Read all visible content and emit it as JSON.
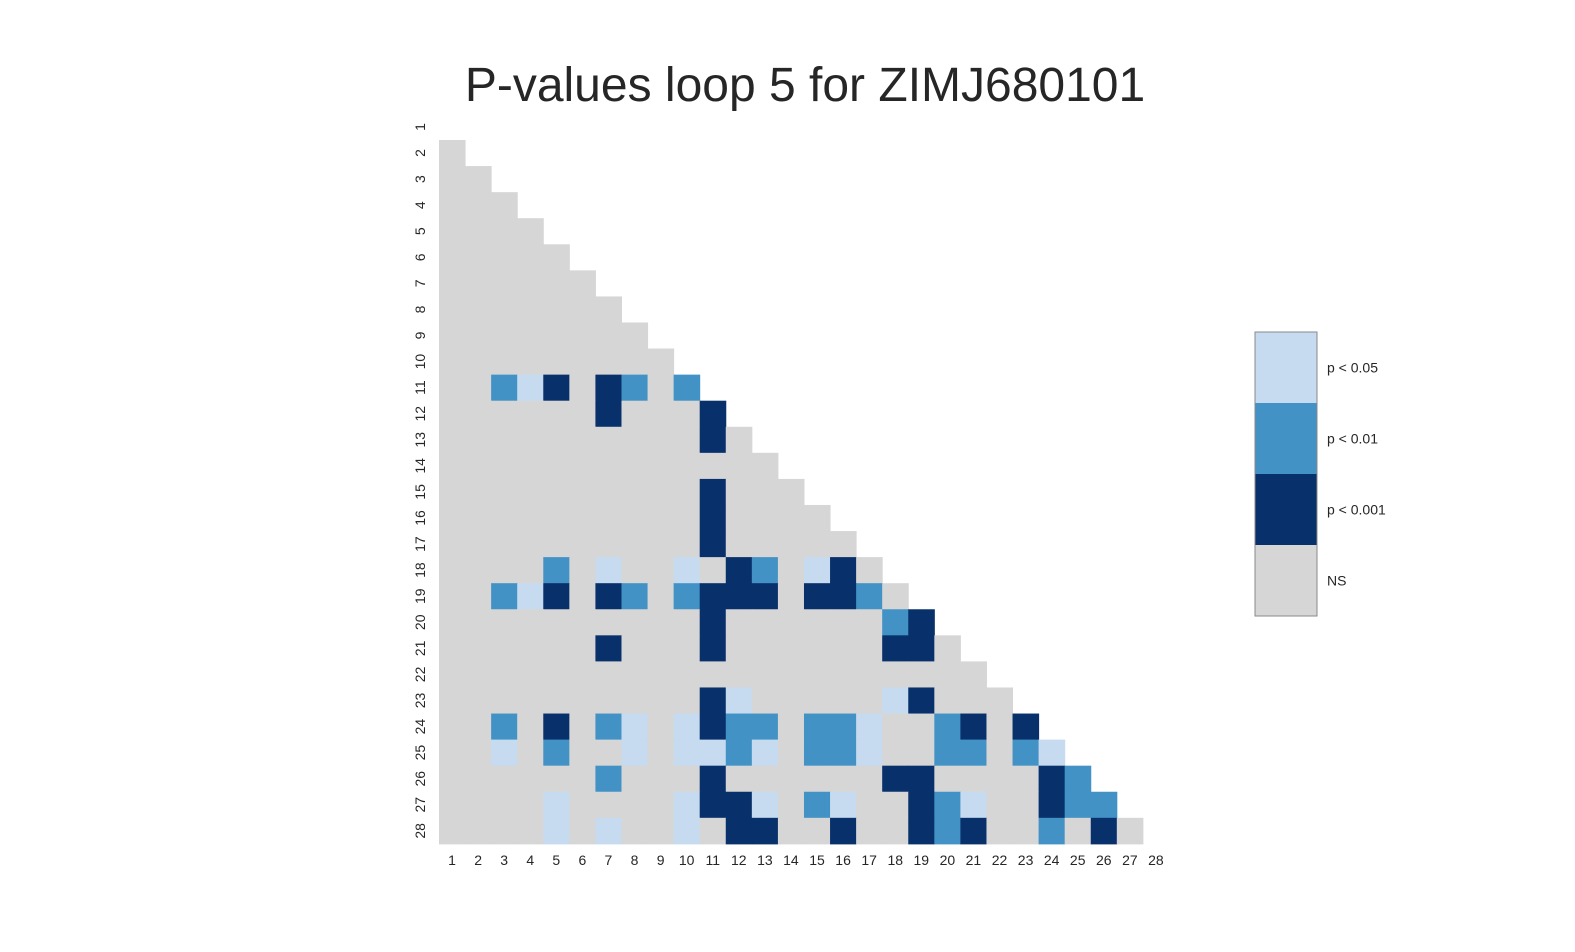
{
  "chart_data": {
    "type": "heatmap",
    "title": "P-values loop 5 for ZIMJ680101",
    "x_ticks": [
      "1",
      "2",
      "3",
      "4",
      "5",
      "6",
      "7",
      "8",
      "9",
      "10",
      "11",
      "12",
      "13",
      "14",
      "15",
      "16",
      "17",
      "18",
      "19",
      "20",
      "21",
      "22",
      "23",
      "24",
      "25",
      "26",
      "27",
      "28"
    ],
    "y_ticks": [
      "1",
      "2",
      "3",
      "4",
      "5",
      "6",
      "7",
      "8",
      "9",
      "10",
      "11",
      "12",
      "13",
      "14",
      "15",
      "16",
      "17",
      "18",
      "19",
      "20",
      "21",
      "22",
      "23",
      "24",
      "25",
      "26",
      "27",
      "28"
    ],
    "matrix_shape": "lower-triangular",
    "levels": [
      {
        "code": 0,
        "label": "NS",
        "color": "#d6d6d6"
      },
      {
        "code": 1,
        "label": "p < 0.05",
        "color": "#c6dbef"
      },
      {
        "code": 2,
        "label": "p < 0.01",
        "color": "#4292c6"
      },
      {
        "code": 3,
        "label": "p < 0.001",
        "color": "#08306b"
      }
    ],
    "significant_cells": [
      {
        "row": 11,
        "col": 3,
        "level": 2
      },
      {
        "row": 11,
        "col": 4,
        "level": 1
      },
      {
        "row": 11,
        "col": 5,
        "level": 3
      },
      {
        "row": 11,
        "col": 7,
        "level": 3
      },
      {
        "row": 11,
        "col": 8,
        "level": 2
      },
      {
        "row": 11,
        "col": 10,
        "level": 2
      },
      {
        "row": 12,
        "col": 7,
        "level": 3
      },
      {
        "row": 12,
        "col": 11,
        "level": 3
      },
      {
        "row": 13,
        "col": 11,
        "level": 3
      },
      {
        "row": 15,
        "col": 11,
        "level": 3
      },
      {
        "row": 16,
        "col": 11,
        "level": 3
      },
      {
        "row": 17,
        "col": 11,
        "level": 3
      },
      {
        "row": 18,
        "col": 5,
        "level": 2
      },
      {
        "row": 18,
        "col": 7,
        "level": 1
      },
      {
        "row": 18,
        "col": 10,
        "level": 1
      },
      {
        "row": 18,
        "col": 12,
        "level": 3
      },
      {
        "row": 18,
        "col": 13,
        "level": 2
      },
      {
        "row": 18,
        "col": 15,
        "level": 1
      },
      {
        "row": 18,
        "col": 16,
        "level": 3
      },
      {
        "row": 19,
        "col": 3,
        "level": 2
      },
      {
        "row": 19,
        "col": 4,
        "level": 1
      },
      {
        "row": 19,
        "col": 5,
        "level": 3
      },
      {
        "row": 19,
        "col": 7,
        "level": 3
      },
      {
        "row": 19,
        "col": 8,
        "level": 2
      },
      {
        "row": 19,
        "col": 10,
        "level": 2
      },
      {
        "row": 19,
        "col": 11,
        "level": 3
      },
      {
        "row": 19,
        "col": 12,
        "level": 3
      },
      {
        "row": 19,
        "col": 13,
        "level": 3
      },
      {
        "row": 19,
        "col": 15,
        "level": 3
      },
      {
        "row": 19,
        "col": 16,
        "level": 3
      },
      {
        "row": 19,
        "col": 17,
        "level": 2
      },
      {
        "row": 20,
        "col": 11,
        "level": 3
      },
      {
        "row": 20,
        "col": 18,
        "level": 2
      },
      {
        "row": 20,
        "col": 19,
        "level": 3
      },
      {
        "row": 21,
        "col": 7,
        "level": 3
      },
      {
        "row": 21,
        "col": 11,
        "level": 3
      },
      {
        "row": 21,
        "col": 18,
        "level": 3
      },
      {
        "row": 21,
        "col": 19,
        "level": 3
      },
      {
        "row": 23,
        "col": 11,
        "level": 3
      },
      {
        "row": 23,
        "col": 12,
        "level": 1
      },
      {
        "row": 23,
        "col": 18,
        "level": 1
      },
      {
        "row": 23,
        "col": 19,
        "level": 3
      },
      {
        "row": 24,
        "col": 3,
        "level": 2
      },
      {
        "row": 24,
        "col": 5,
        "level": 3
      },
      {
        "row": 24,
        "col": 7,
        "level": 2
      },
      {
        "row": 24,
        "col": 8,
        "level": 1
      },
      {
        "row": 24,
        "col": 10,
        "level": 1
      },
      {
        "row": 24,
        "col": 11,
        "level": 3
      },
      {
        "row": 24,
        "col": 12,
        "level": 2
      },
      {
        "row": 24,
        "col": 13,
        "level": 2
      },
      {
        "row": 24,
        "col": 15,
        "level": 2
      },
      {
        "row": 24,
        "col": 16,
        "level": 2
      },
      {
        "row": 24,
        "col": 17,
        "level": 1
      },
      {
        "row": 24,
        "col": 20,
        "level": 2
      },
      {
        "row": 24,
        "col": 21,
        "level": 3
      },
      {
        "row": 24,
        "col": 23,
        "level": 3
      },
      {
        "row": 25,
        "col": 3,
        "level": 1
      },
      {
        "row": 25,
        "col": 5,
        "level": 2
      },
      {
        "row": 25,
        "col": 8,
        "level": 1
      },
      {
        "row": 25,
        "col": 10,
        "level": 1
      },
      {
        "row": 25,
        "col": 11,
        "level": 1
      },
      {
        "row": 25,
        "col": 12,
        "level": 2
      },
      {
        "row": 25,
        "col": 13,
        "level": 1
      },
      {
        "row": 25,
        "col": 15,
        "level": 2
      },
      {
        "row": 25,
        "col": 16,
        "level": 2
      },
      {
        "row": 25,
        "col": 17,
        "level": 1
      },
      {
        "row": 25,
        "col": 20,
        "level": 2
      },
      {
        "row": 25,
        "col": 21,
        "level": 2
      },
      {
        "row": 25,
        "col": 23,
        "level": 2
      },
      {
        "row": 25,
        "col": 24,
        "level": 1
      },
      {
        "row": 26,
        "col": 7,
        "level": 2
      },
      {
        "row": 26,
        "col": 11,
        "level": 3
      },
      {
        "row": 26,
        "col": 18,
        "level": 3
      },
      {
        "row": 26,
        "col": 19,
        "level": 3
      },
      {
        "row": 26,
        "col": 24,
        "level": 3
      },
      {
        "row": 26,
        "col": 25,
        "level": 2
      },
      {
        "row": 27,
        "col": 5,
        "level": 1
      },
      {
        "row": 27,
        "col": 10,
        "level": 1
      },
      {
        "row": 27,
        "col": 11,
        "level": 3
      },
      {
        "row": 27,
        "col": 12,
        "level": 3
      },
      {
        "row": 27,
        "col": 13,
        "level": 1
      },
      {
        "row": 27,
        "col": 15,
        "level": 2
      },
      {
        "row": 27,
        "col": 16,
        "level": 1
      },
      {
        "row": 27,
        "col": 19,
        "level": 3
      },
      {
        "row": 27,
        "col": 20,
        "level": 2
      },
      {
        "row": 27,
        "col": 21,
        "level": 1
      },
      {
        "row": 27,
        "col": 24,
        "level": 3
      },
      {
        "row": 27,
        "col": 25,
        "level": 2
      },
      {
        "row": 27,
        "col": 26,
        "level": 2
      },
      {
        "row": 28,
        "col": 5,
        "level": 1
      },
      {
        "row": 28,
        "col": 7,
        "level": 1
      },
      {
        "row": 28,
        "col": 10,
        "level": 1
      },
      {
        "row": 28,
        "col": 12,
        "level": 3
      },
      {
        "row": 28,
        "col": 13,
        "level": 3
      },
      {
        "row": 28,
        "col": 16,
        "level": 3
      },
      {
        "row": 28,
        "col": 19,
        "level": 3
      },
      {
        "row": 28,
        "col": 20,
        "level": 2
      },
      {
        "row": 28,
        "col": 21,
        "level": 3
      },
      {
        "row": 28,
        "col": 24,
        "level": 2
      },
      {
        "row": 28,
        "col": 26,
        "level": 3
      }
    ],
    "legend": {
      "placement": "right",
      "entries": [
        {
          "label": "p < 0.05",
          "color": "#c6dbef"
        },
        {
          "label": "p < 0.01",
          "color": "#4292c6"
        },
        {
          "label": "p < 0.001",
          "color": "#08306b"
        },
        {
          "label": "NS",
          "color": "#d6d6d6"
        }
      ]
    },
    "grid": false
  }
}
